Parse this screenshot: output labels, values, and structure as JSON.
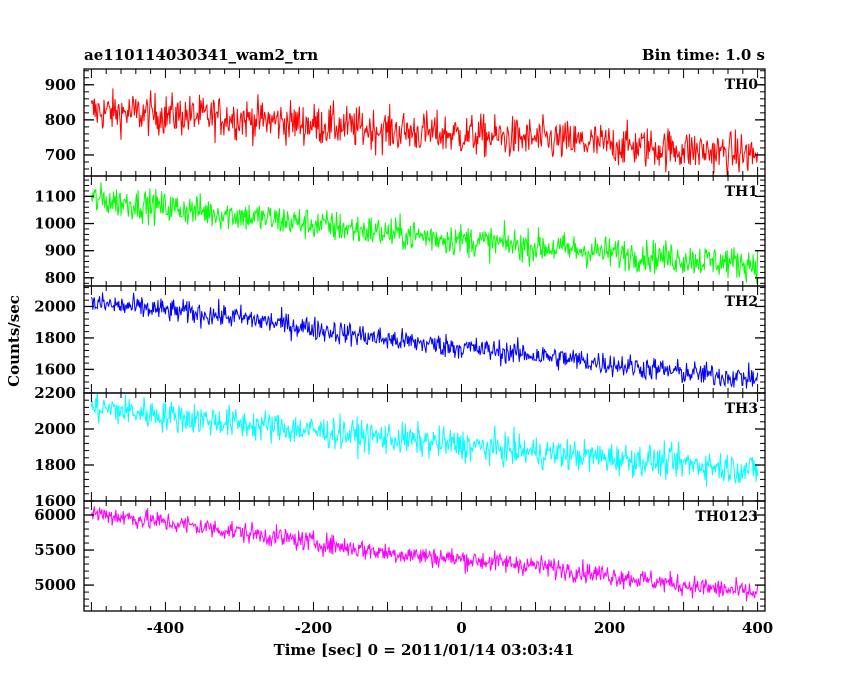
{
  "chart_data": {
    "type": "line",
    "title_left": "ae110114030341_wam2_trn",
    "title_right": "Bin time: 1.0 s",
    "xlabel": "Time [sec] 0 = 2011/01/14 03:03:41",
    "ylabel": "Counts/sec",
    "xlim": [
      -510,
      410
    ],
    "x_ticks": [
      -400,
      -200,
      0,
      200,
      400
    ],
    "series_x_range": [
      -500,
      400
    ],
    "panels": [
      {
        "name": "TH0",
        "color": "#ff0000",
        "ylim": [
          640,
          945
        ],
        "y_ticks": [
          700,
          800,
          900
        ],
        "trend": [
          [
            -500,
            825
          ],
          [
            -300,
            805
          ],
          [
            -100,
            770
          ],
          [
            100,
            745
          ],
          [
            300,
            715
          ],
          [
            400,
            700
          ]
        ],
        "noise": 30
      },
      {
        "name": "TH1",
        "color": "#00ff00",
        "ylim": [
          770,
          1175
        ],
        "y_ticks": [
          800,
          900,
          1000,
          1100
        ],
        "trend": [
          [
            -500,
            1090
          ],
          [
            -300,
            1030
          ],
          [
            -100,
            965
          ],
          [
            100,
            915
          ],
          [
            300,
            870
          ],
          [
            400,
            850
          ]
        ],
        "noise": 30
      },
      {
        "name": "TH2",
        "color": "#0000ff",
        "ylim": [
          1450,
          2130
        ],
        "y_ticks": [
          1600,
          1800,
          2000
        ],
        "trend": [
          [
            -500,
            2020
          ],
          [
            -300,
            1930
          ],
          [
            -100,
            1790
          ],
          [
            100,
            1690
          ],
          [
            300,
            1580
          ],
          [
            400,
            1540
          ]
        ],
        "noise": 38
      },
      {
        "name": "TH3",
        "color": "#00ffff",
        "ylim": [
          1600,
          2200
        ],
        "y_ticks": [
          1600,
          1800,
          2000,
          2200
        ],
        "trend": [
          [
            -500,
            2120
          ],
          [
            -300,
            2030
          ],
          [
            -100,
            1950
          ],
          [
            100,
            1870
          ],
          [
            300,
            1810
          ],
          [
            400,
            1770
          ]
        ],
        "noise": 45
      },
      {
        "name": "TH0123",
        "color": "#ff00ff",
        "ylim": [
          4630,
          6200
        ],
        "y_ticks": [
          5000,
          5500,
          6000
        ],
        "trend": [
          [
            -500,
            6030
          ],
          [
            -300,
            5760
          ],
          [
            -100,
            5460
          ],
          [
            100,
            5280
          ],
          [
            300,
            5000
          ],
          [
            400,
            4880
          ]
        ],
        "noise": 75
      }
    ]
  }
}
